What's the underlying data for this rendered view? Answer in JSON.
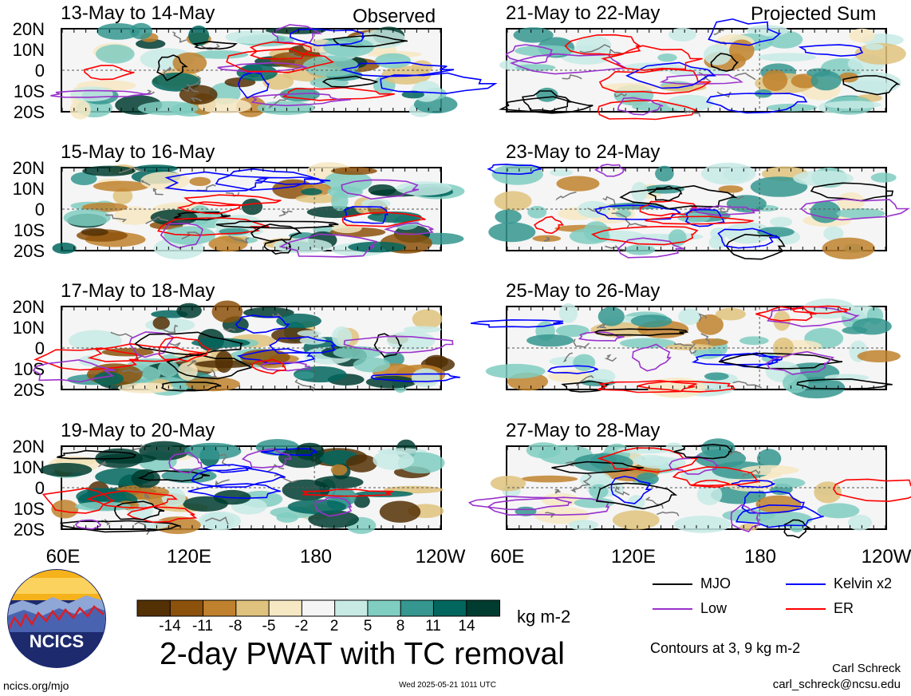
{
  "headers": {
    "left": "Observed",
    "right": "Projected Sum"
  },
  "panels": {
    "left": [
      "13-May to 14-May",
      "15-May to 16-May",
      "17-May to 18-May",
      "19-May to 20-May"
    ],
    "right": [
      "21-May to 22-May",
      "23-May to 24-May",
      "25-May to 26-May",
      "27-May to 28-May"
    ]
  },
  "axes": {
    "lat_labels": [
      "20N",
      "10N",
      "0",
      "10S",
      "20S"
    ],
    "lon_labels": [
      "60E",
      "120E",
      "180",
      "120W"
    ]
  },
  "colorbar": {
    "ticks": [
      "-14",
      "-11",
      "-8",
      "-5",
      "-2",
      "2",
      "5",
      "8",
      "11",
      "14"
    ],
    "colors": [
      "#543005",
      "#8c510a",
      "#bf812d",
      "#dfc27d",
      "#f6e8c3",
      "#f5f5f5",
      "#c7eae5",
      "#80cdc1",
      "#35978f",
      "#01665e",
      "#003c30"
    ],
    "units": "kg m-2"
  },
  "legend": [
    {
      "label": "MJO",
      "color": "#000000"
    },
    {
      "label": "Kelvin x2",
      "color": "#0000ff"
    },
    {
      "label": "Low",
      "color": "#9932cc"
    },
    {
      "label": "ER",
      "color": "#ff0000"
    }
  ],
  "title": "2-day PWAT with TC removal",
  "contours_note": "Contours at 3, 9 kg m-2",
  "author": {
    "name": "Carl Schreck",
    "email": "carl_schreck@ncsu.edu"
  },
  "site": "ncics.org/mjo",
  "timestamp": "Wed 2025-05-21 1011 UTC",
  "logo_text": "NCICS",
  "chart_data": [
    {
      "type": "heatmap",
      "title": "13-May to 14-May",
      "group": "Observed",
      "x": [
        "60E",
        "120E",
        "180",
        "120W"
      ],
      "y": [
        "20S",
        "10S",
        "0",
        "10N",
        "20N"
      ],
      "value_range": [
        -14,
        14
      ],
      "units": "kg m-2"
    },
    {
      "type": "heatmap",
      "title": "15-May to 16-May",
      "group": "Observed",
      "x": [
        "60E",
        "120E",
        "180",
        "120W"
      ],
      "y": [
        "20S",
        "10S",
        "0",
        "10N",
        "20N"
      ],
      "value_range": [
        -14,
        14
      ],
      "units": "kg m-2"
    },
    {
      "type": "heatmap",
      "title": "17-May to 18-May",
      "group": "Observed",
      "x": [
        "60E",
        "120E",
        "180",
        "120W"
      ],
      "y": [
        "20S",
        "10S",
        "0",
        "10N",
        "20N"
      ],
      "value_range": [
        -14,
        14
      ],
      "units": "kg m-2"
    },
    {
      "type": "heatmap",
      "title": "19-May to 20-May",
      "group": "Observed",
      "x": [
        "60E",
        "120E",
        "180",
        "120W"
      ],
      "y": [
        "20S",
        "10S",
        "0",
        "10N",
        "20N"
      ],
      "value_range": [
        -14,
        14
      ],
      "units": "kg m-2"
    },
    {
      "type": "heatmap",
      "title": "21-May to 22-May",
      "group": "Projected Sum",
      "x": [
        "60E",
        "120E",
        "180",
        "120W"
      ],
      "y": [
        "20S",
        "10S",
        "0",
        "10N",
        "20N"
      ],
      "value_range": [
        -14,
        14
      ],
      "units": "kg m-2"
    },
    {
      "type": "heatmap",
      "title": "23-May to 24-May",
      "group": "Projected Sum",
      "x": [
        "60E",
        "120E",
        "180",
        "120W"
      ],
      "y": [
        "20S",
        "10S",
        "0",
        "10N",
        "20N"
      ],
      "value_range": [
        -14,
        14
      ],
      "units": "kg m-2"
    },
    {
      "type": "heatmap",
      "title": "25-May to 26-May",
      "group": "Projected Sum",
      "x": [
        "60E",
        "120E",
        "180",
        "120W"
      ],
      "y": [
        "20S",
        "10S",
        "0",
        "10N",
        "20N"
      ],
      "value_range": [
        -14,
        14
      ],
      "units": "kg m-2"
    },
    {
      "type": "heatmap",
      "title": "27-May to 28-May",
      "group": "Projected Sum",
      "x": [
        "60E",
        "120E",
        "180",
        "120W"
      ],
      "y": [
        "20S",
        "10S",
        "0",
        "10N",
        "20N"
      ],
      "value_range": [
        -14,
        14
      ],
      "units": "kg m-2"
    }
  ]
}
